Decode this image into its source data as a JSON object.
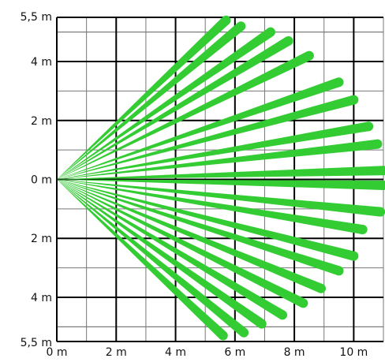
{
  "diagram": {
    "title": "",
    "beam_color": "#33cc33",
    "grid_color": "#000000",
    "y_axis": {
      "unit": "m",
      "range": [
        -5.5,
        5.5
      ],
      "major_step": 2,
      "minor_step": 1,
      "tick_labels": [
        {
          "value": 5.5,
          "text": "5,5 m"
        },
        {
          "value": 4,
          "text": "4 m"
        },
        {
          "value": 2,
          "text": "2 m"
        },
        {
          "value": 0,
          "text": "0 m"
        },
        {
          "value": -2,
          "text": "2 m"
        },
        {
          "value": -4,
          "text": "4 m"
        },
        {
          "value": -5.5,
          "text": "5,5 m"
        }
      ]
    },
    "x_axis": {
      "unit": "m",
      "range": [
        0,
        11
      ],
      "major_step": 2,
      "minor_step": 1,
      "tick_labels": [
        {
          "value": 0,
          "text": "0 m"
        },
        {
          "value": 2,
          "text": "2 m"
        },
        {
          "value": 4,
          "text": "4 m"
        },
        {
          "value": 6,
          "text": "6 m"
        },
        {
          "value": 8,
          "text": "8 m"
        },
        {
          "value": 10,
          "text": "10 m"
        }
      ]
    },
    "origin": {
      "x": 0,
      "y": 0
    },
    "beams": [
      {
        "x": 5.7,
        "y": 5.4
      },
      {
        "x": 6.2,
        "y": 5.2
      },
      {
        "x": 7.2,
        "y": 5.0
      },
      {
        "x": 7.8,
        "y": 4.7
      },
      {
        "x": 8.5,
        "y": 4.2
      },
      {
        "x": 9.5,
        "y": 3.3
      },
      {
        "x": 10.0,
        "y": 2.7
      },
      {
        "x": 10.5,
        "y": 1.8
      },
      {
        "x": 10.8,
        "y": 1.2
      },
      {
        "x": 11.0,
        "y": 0.3
      },
      {
        "x": 11.0,
        "y": -0.2
      },
      {
        "x": 10.9,
        "y": -1.1
      },
      {
        "x": 10.3,
        "y": -1.7
      },
      {
        "x": 10.0,
        "y": -2.6
      },
      {
        "x": 9.5,
        "y": -3.1
      },
      {
        "x": 8.9,
        "y": -3.7
      },
      {
        "x": 8.3,
        "y": -4.2
      },
      {
        "x": 7.6,
        "y": -4.6
      },
      {
        "x": 6.9,
        "y": -4.9
      },
      {
        "x": 6.3,
        "y": -5.2
      },
      {
        "x": 5.6,
        "y": -5.3
      }
    ]
  }
}
